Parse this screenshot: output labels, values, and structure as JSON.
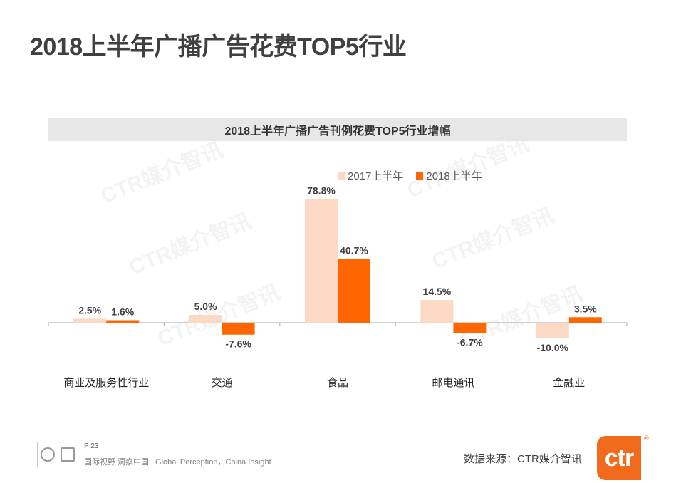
{
  "page": {
    "title": "2018上半年广播广告花费TOP5行业",
    "watermark_text": "CTR媒介智讯",
    "page_number": "P 23",
    "tagline": "国际视野 洞察中国 |  Global Perception，China Insight",
    "source": "数据来源：CTR媒介智讯",
    "brand_logo": "ctr",
    "brand_mark": "®"
  },
  "colors": {
    "series_2017": "#fbd9c4",
    "series_2018": "#ff6600",
    "axis": "#a6a6a6"
  },
  "icons": [
    "certification-seal-icon",
    "ukas-check-icon"
  ],
  "chart_data": {
    "type": "bar",
    "title": "2018上半年广播广告刊例花费TOP5行业增幅",
    "categories": [
      "商业及服务性行业",
      "交通",
      "食品",
      "邮电通讯",
      "金融业"
    ],
    "series": [
      {
        "name": "2017上半年",
        "values": [
          2.5,
          5.0,
          78.8,
          14.5,
          -10.0
        ],
        "labels": [
          "2.5%",
          "5.0%",
          "78.8%",
          "14.5%",
          "-10.0%"
        ]
      },
      {
        "name": "2018上半年",
        "values": [
          1.6,
          -7.6,
          40.7,
          -6.7,
          3.5
        ],
        "labels": [
          "1.6%",
          "-7.6%",
          "40.7%",
          "-6.7%",
          "3.5%"
        ]
      }
    ],
    "ylim": [
      -15,
      80
    ],
    "xlabel": "",
    "ylabel": "",
    "grid": false,
    "legend": "top-right"
  }
}
